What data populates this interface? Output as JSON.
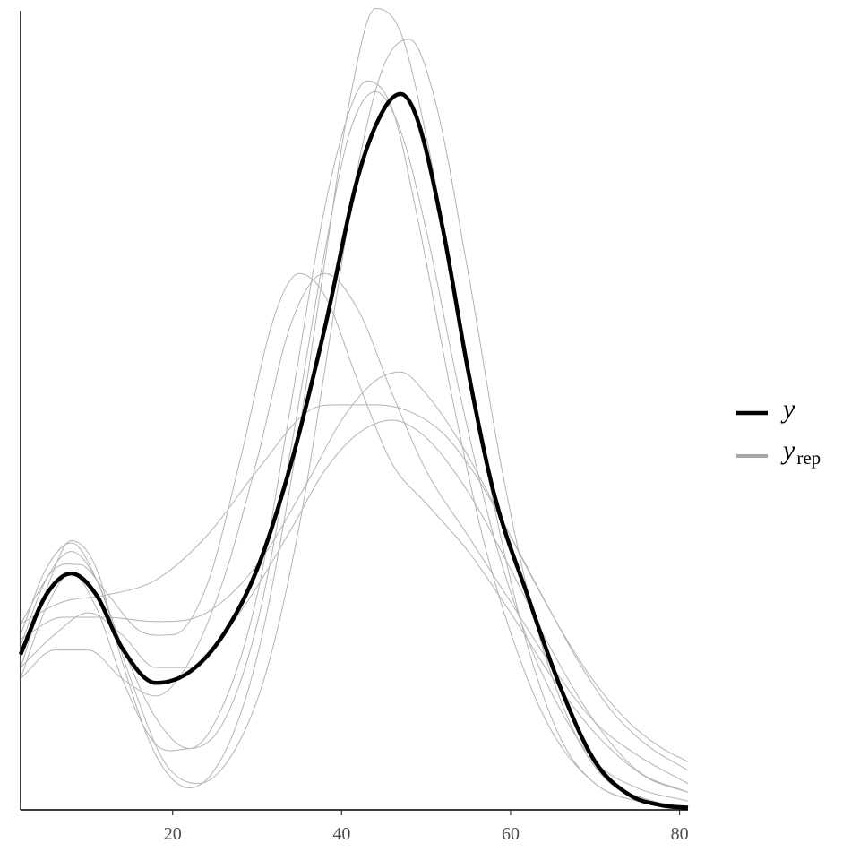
{
  "chart_data": {
    "type": "line",
    "title": "",
    "xlabel": "",
    "ylabel": "",
    "xlim": [
      2,
      81
    ],
    "ylim": [
      0,
      0.0365
    ],
    "x_ticks": [
      20,
      40,
      60,
      80
    ],
    "x_tick_labels": [
      "20",
      "40",
      "60",
      "80"
    ],
    "y_axis_ticks": "none",
    "grid": false,
    "legend_position": "right",
    "colors": {
      "y": "#000000",
      "yrep": "#a6a6a6",
      "yrep_curve": "#b3b3b3"
    },
    "legend": [
      {
        "key": "y",
        "symbol": "y",
        "subscript": ""
      },
      {
        "key": "yrep",
        "symbol": "y",
        "subscript": "rep"
      }
    ],
    "series": [
      {
        "name": "y",
        "kind": "observed",
        "x": [
          2,
          5,
          8,
          11,
          14,
          18,
          22,
          26,
          30,
          34,
          38,
          42,
          45,
          47,
          49,
          52,
          55,
          58,
          62,
          66,
          70,
          74,
          78,
          81
        ],
        "values": [
          0.0071,
          0.0098,
          0.0108,
          0.0098,
          0.0074,
          0.0058,
          0.0063,
          0.008,
          0.011,
          0.0158,
          0.022,
          0.029,
          0.032,
          0.0327,
          0.0315,
          0.0265,
          0.02,
          0.0145,
          0.0098,
          0.0055,
          0.0022,
          0.0007,
          0.0002,
          0.0001
        ]
      },
      {
        "kind": "replicated",
        "x": [
          2,
          7,
          12,
          18,
          24,
          30,
          36,
          40,
          44,
          47,
          50,
          54,
          58,
          62,
          66,
          70,
          74,
          78,
          81
        ],
        "values": [
          0.0078,
          0.0088,
          0.0088,
          0.0086,
          0.009,
          0.0112,
          0.015,
          0.0178,
          0.0196,
          0.02,
          0.019,
          0.0168,
          0.014,
          0.011,
          0.0082,
          0.0058,
          0.004,
          0.0028,
          0.0022
        ]
      },
      {
        "kind": "replicated",
        "x": [
          2,
          7,
          12,
          18,
          24,
          30,
          36,
          40,
          44,
          48,
          52,
          56,
          60,
          64,
          68,
          72,
          76,
          81
        ],
        "values": [
          0.0085,
          0.0095,
          0.0098,
          0.0105,
          0.0125,
          0.0155,
          0.0182,
          0.0185,
          0.0185,
          0.0182,
          0.0172,
          0.0152,
          0.0125,
          0.0096,
          0.0068,
          0.0045,
          0.003,
          0.0018
        ]
      },
      {
        "kind": "replicated",
        "x": [
          2,
          6,
          10,
          14,
          18,
          22,
          26,
          30,
          34,
          38,
          42,
          46,
          50,
          55,
          60,
          65,
          70,
          75,
          81
        ],
        "values": [
          0.0065,
          0.008,
          0.009,
          0.008,
          0.0065,
          0.0065,
          0.008,
          0.0102,
          0.0128,
          0.0155,
          0.0172,
          0.0178,
          0.017,
          0.0145,
          0.011,
          0.0072,
          0.004,
          0.0018,
          0.0008
        ]
      },
      {
        "kind": "replicated",
        "x": [
          2,
          6,
          10,
          14,
          18,
          22,
          26,
          30,
          34,
          38,
          42,
          46,
          50,
          55,
          60,
          65,
          70,
          75,
          81
        ],
        "values": [
          0.006,
          0.0073,
          0.0073,
          0.006,
          0.0052,
          0.0068,
          0.0105,
          0.016,
          0.0222,
          0.0245,
          0.0228,
          0.019,
          0.0155,
          0.0125,
          0.0095,
          0.0065,
          0.004,
          0.0025,
          0.0012
        ]
      },
      {
        "kind": "replicated",
        "x": [
          2,
          6,
          9,
          12,
          16,
          20,
          24,
          28,
          32,
          35,
          38,
          42,
          46,
          50,
          55,
          60,
          65,
          70,
          76,
          81
        ],
        "values": [
          0.0085,
          0.011,
          0.0112,
          0.01,
          0.0082,
          0.008,
          0.0102,
          0.016,
          0.0225,
          0.0245,
          0.0235,
          0.0195,
          0.0158,
          0.014,
          0.0118,
          0.009,
          0.006,
          0.0035,
          0.0015,
          0.0008
        ]
      },
      {
        "kind": "replicated",
        "x": [
          2,
          5,
          8,
          11,
          14,
          18,
          22,
          26,
          30,
          34,
          38,
          41,
          44,
          47,
          50,
          54,
          58,
          62,
          66,
          70,
          75,
          81
        ],
        "values": [
          0.0065,
          0.01,
          0.0123,
          0.011,
          0.0068,
          0.0025,
          0.001,
          0.0025,
          0.007,
          0.015,
          0.025,
          0.0325,
          0.0366,
          0.0355,
          0.0308,
          0.0225,
          0.014,
          0.0075,
          0.0032,
          0.0012,
          0.0004,
          0.0001
        ]
      },
      {
        "kind": "replicated",
        "x": [
          2,
          5,
          8,
          11,
          15,
          19,
          23,
          27,
          31,
          35,
          39,
          42,
          45,
          48,
          51,
          55,
          59,
          63,
          67,
          71,
          76,
          81
        ],
        "values": [
          0.008,
          0.011,
          0.0122,
          0.0105,
          0.006,
          0.0022,
          0.0012,
          0.0025,
          0.0062,
          0.013,
          0.0225,
          0.0295,
          0.034,
          0.0352,
          0.0325,
          0.0245,
          0.0155,
          0.0085,
          0.004,
          0.0015,
          0.0005,
          0.0001
        ]
      },
      {
        "kind": "replicated",
        "x": [
          2,
          5,
          8,
          11,
          14,
          18,
          22,
          26,
          30,
          34,
          38,
          41,
          43,
          46,
          49,
          53,
          57,
          61,
          65,
          70,
          75,
          81
        ],
        "values": [
          0.006,
          0.0092,
          0.0108,
          0.0092,
          0.006,
          0.003,
          0.0028,
          0.0048,
          0.0098,
          0.0185,
          0.0275,
          0.032,
          0.0333,
          0.032,
          0.027,
          0.019,
          0.012,
          0.007,
          0.0035,
          0.0012,
          0.0004,
          0.0001
        ]
      },
      {
        "kind": "replicated",
        "x": [
          2,
          5,
          8,
          11,
          14,
          18,
          22,
          26,
          30,
          34,
          38,
          41,
          44,
          47,
          50,
          54,
          58,
          62,
          66,
          70,
          75,
          81
        ],
        "values": [
          0.0075,
          0.0105,
          0.0118,
          0.0105,
          0.0075,
          0.0042,
          0.0028,
          0.004,
          0.0085,
          0.0165,
          0.0255,
          0.031,
          0.0328,
          0.031,
          0.0265,
          0.019,
          0.0125,
          0.0078,
          0.0045,
          0.0022,
          0.001,
          0.0004
        ]
      }
    ]
  }
}
